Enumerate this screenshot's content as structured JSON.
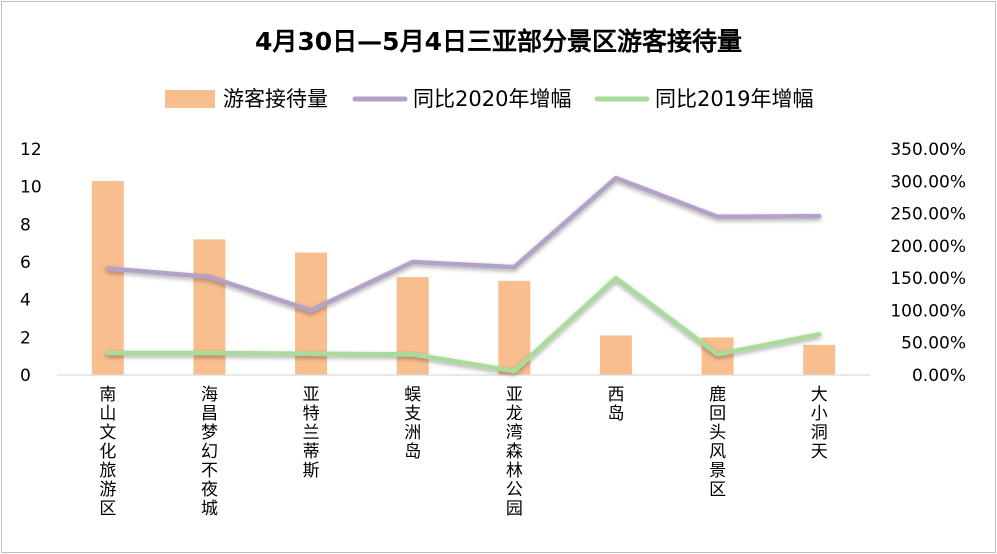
{
  "chart_data": {
    "type": "bar",
    "title": "4月30日—5月4日三亚部分景区游客接待量",
    "categories": [
      "南山文化旅游区",
      "海昌梦幻不夜城",
      "亚特兰蒂斯",
      "蜈支洲岛",
      "亚龙湾森林公园",
      "西岛",
      "鹿回头风景区",
      "大小洞天"
    ],
    "series": [
      {
        "name": "游客接待量",
        "kind": "bar",
        "axis": "left",
        "color": "#F8BE8E",
        "values": [
          10.3,
          7.2,
          6.5,
          5.2,
          5.0,
          2.1,
          2.0,
          1.6
        ]
      },
      {
        "name": "同比2020年增幅",
        "kind": "line",
        "axis": "right",
        "color": "#B3A2C7",
        "values": [
          1.65,
          1.52,
          1.0,
          1.75,
          1.67,
          3.05,
          2.45,
          2.46
        ]
      },
      {
        "name": "同比2019年增幅",
        "kind": "line",
        "axis": "right",
        "color": "#A9DC9A",
        "values": [
          0.34,
          0.34,
          0.33,
          0.32,
          0.06,
          1.5,
          0.32,
          0.63
        ]
      }
    ],
    "y_left": {
      "min": 0,
      "max": 12,
      "ticks": [
        "0",
        "2",
        "4",
        "6",
        "8",
        "10",
        "12"
      ]
    },
    "y_right": {
      "min": 0,
      "max": 3.5,
      "ticks": [
        "0.00%",
        "50.00%",
        "100.00%",
        "150.00%",
        "200.00%",
        "250.00%",
        "300.00%",
        "350.00%"
      ]
    },
    "legend_position": "top",
    "grid": false
  }
}
